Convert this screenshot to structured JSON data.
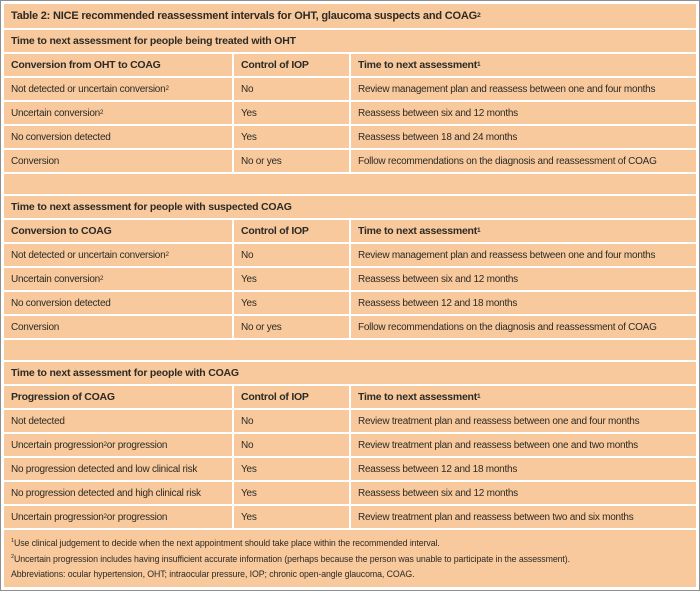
{
  "colors": {
    "cell_bg": "#f7c99c",
    "text": "#2e2a25",
    "separator": "#ffffff",
    "outer_border": "#8e8e8e"
  },
  "title": {
    "parts": [
      {
        "text": "Table 2: NICE recommended reassessment intervals for OHT, glaucoma suspects and COAG"
      },
      {
        "sup": "2"
      }
    ]
  },
  "sections": [
    {
      "heading": "Time to next assessment for people being treated with OHT",
      "columns": [
        {
          "parts": [
            {
              "text": "Conversion from OHT to COAG"
            }
          ]
        },
        {
          "parts": [
            {
              "text": "Control of IOP"
            }
          ]
        },
        {
          "parts": [
            {
              "text": "Time to next assessment"
            },
            {
              "sup": "1"
            }
          ]
        }
      ],
      "rows": [
        [
          {
            "parts": [
              {
                "text": "Not detected or uncertain conversion"
              },
              {
                "sup": "2"
              }
            ]
          },
          {
            "parts": [
              {
                "text": "No"
              }
            ]
          },
          {
            "parts": [
              {
                "text": "Review management plan and reassess between one and four months"
              }
            ]
          }
        ],
        [
          {
            "parts": [
              {
                "text": "Uncertain conversion"
              },
              {
                "sup": "2"
              }
            ]
          },
          {
            "parts": [
              {
                "text": "Yes"
              }
            ]
          },
          {
            "parts": [
              {
                "text": "Reassess between six and 12 months"
              }
            ]
          }
        ],
        [
          {
            "parts": [
              {
                "text": "No conversion detected"
              }
            ]
          },
          {
            "parts": [
              {
                "text": "Yes"
              }
            ]
          },
          {
            "parts": [
              {
                "text": "Reassess between 18 and 24 months"
              }
            ]
          }
        ],
        [
          {
            "parts": [
              {
                "text": "Conversion"
              }
            ]
          },
          {
            "parts": [
              {
                "text": "No or yes"
              }
            ]
          },
          {
            "parts": [
              {
                "text": "Follow recommendations on the diagnosis and reassessment of COAG"
              }
            ]
          }
        ]
      ]
    },
    {
      "heading": "Time to next assessment for people with suspected COAG",
      "columns": [
        {
          "parts": [
            {
              "text": "Conversion to COAG"
            }
          ]
        },
        {
          "parts": [
            {
              "text": "Control of IOP"
            }
          ]
        },
        {
          "parts": [
            {
              "text": "Time to next assessment"
            },
            {
              "sup": "1"
            }
          ]
        }
      ],
      "rows": [
        [
          {
            "parts": [
              {
                "text": "Not detected or uncertain conversion"
              },
              {
                "sup": "2"
              }
            ]
          },
          {
            "parts": [
              {
                "text": "No"
              }
            ]
          },
          {
            "parts": [
              {
                "text": "Review management plan and reassess between one and four months"
              }
            ]
          }
        ],
        [
          {
            "parts": [
              {
                "text": "Uncertain conversion"
              },
              {
                "sup": "2"
              }
            ]
          },
          {
            "parts": [
              {
                "text": "Yes"
              }
            ]
          },
          {
            "parts": [
              {
                "text": "Reassess between six and 12 months"
              }
            ]
          }
        ],
        [
          {
            "parts": [
              {
                "text": "No conversion detected"
              }
            ]
          },
          {
            "parts": [
              {
                "text": "Yes"
              }
            ]
          },
          {
            "parts": [
              {
                "text": "Reassess between 12 and 18 months"
              }
            ]
          }
        ],
        [
          {
            "parts": [
              {
                "text": "Conversion"
              }
            ]
          },
          {
            "parts": [
              {
                "text": "No or yes"
              }
            ]
          },
          {
            "parts": [
              {
                "text": "Follow recommendations on the diagnosis and reassessment of COAG"
              }
            ]
          }
        ]
      ]
    },
    {
      "heading": "Time to next assessment for people with COAG",
      "columns": [
        {
          "parts": [
            {
              "text": "Progression of COAG"
            }
          ]
        },
        {
          "parts": [
            {
              "text": "Control of IOP"
            }
          ]
        },
        {
          "parts": [
            {
              "text": "Time to next assessment"
            },
            {
              "sup": "1"
            }
          ]
        }
      ],
      "rows": [
        [
          {
            "parts": [
              {
                "text": "Not detected"
              }
            ]
          },
          {
            "parts": [
              {
                "text": "No"
              }
            ]
          },
          {
            "parts": [
              {
                "text": "Review treatment plan and reassess between one and four months"
              }
            ]
          }
        ],
        [
          {
            "parts": [
              {
                "text": "Uncertain progression"
              },
              {
                "sup": "2"
              },
              {
                "text": " or progression"
              }
            ]
          },
          {
            "parts": [
              {
                "text": "No"
              }
            ]
          },
          {
            "parts": [
              {
                "text": "Review treatment plan and reassess between one and two months"
              }
            ]
          }
        ],
        [
          {
            "parts": [
              {
                "text": "No progression detected and low clinical risk"
              }
            ]
          },
          {
            "parts": [
              {
                "text": "Yes"
              }
            ]
          },
          {
            "parts": [
              {
                "text": "Reassess between 12 and 18 months"
              }
            ]
          }
        ],
        [
          {
            "parts": [
              {
                "text": "No progression detected and high clinical risk"
              }
            ]
          },
          {
            "parts": [
              {
                "text": "Yes"
              }
            ]
          },
          {
            "parts": [
              {
                "text": "Reassess between six and 12 months"
              }
            ]
          }
        ],
        [
          {
            "parts": [
              {
                "text": "Uncertain progression"
              },
              {
                "sup": "2"
              },
              {
                "text": " or progression"
              }
            ]
          },
          {
            "parts": [
              {
                "text": "Yes"
              }
            ]
          },
          {
            "parts": [
              {
                "text": "Review treatment plan and reassess between two and six months"
              }
            ]
          }
        ]
      ]
    }
  ],
  "footnotes": [
    {
      "parts": [
        {
          "sup": "1"
        },
        {
          "text": "Use clinical judgement to decide when the next appointment should take place within the recommended interval."
        }
      ]
    },
    {
      "parts": [
        {
          "sup": "2"
        },
        {
          "text": "Uncertain progression includes having insufficient accurate information (perhaps because the person was unable to participate in the assessment)."
        }
      ]
    },
    {
      "parts": [
        {
          "text": "Abbreviations: ocular hypertension, OHT; intraocular pressure, IOP; chronic open-angle glaucoma, COAG."
        }
      ]
    }
  ]
}
